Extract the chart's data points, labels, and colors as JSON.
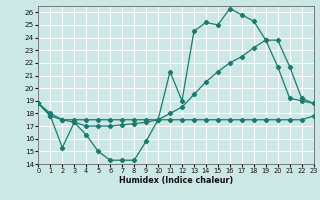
{
  "xlabel": "Humidex (Indice chaleur)",
  "xlim": [
    0,
    23
  ],
  "ylim": [
    14,
    26.5
  ],
  "yticks": [
    14,
    15,
    16,
    17,
    18,
    19,
    20,
    21,
    22,
    23,
    24,
    25,
    26
  ],
  "xticks": [
    0,
    1,
    2,
    3,
    4,
    5,
    6,
    7,
    8,
    9,
    10,
    11,
    12,
    13,
    14,
    15,
    16,
    17,
    18,
    19,
    20,
    21,
    22,
    23
  ],
  "background_color": "#cce8e6",
  "grid_color": "#b0d8d4",
  "line_color": "#1a7a6e",
  "line1_x": [
    0,
    1,
    2,
    3,
    4,
    5,
    6,
    7,
    8,
    9,
    10,
    11,
    12,
    13,
    14,
    15,
    16,
    17,
    18,
    19,
    20,
    21,
    22,
    23
  ],
  "line1_y": [
    18.8,
    17.8,
    17.5,
    17.5,
    17.5,
    17.5,
    17.5,
    17.5,
    17.5,
    17.5,
    17.5,
    17.5,
    17.5,
    17.5,
    17.5,
    17.5,
    17.5,
    17.5,
    17.5,
    17.5,
    17.5,
    17.5,
    17.5,
    17.8
  ],
  "line2_x": [
    0,
    1,
    2,
    3,
    4,
    5,
    6,
    7,
    8,
    9,
    10,
    11,
    12,
    13,
    14,
    15,
    16,
    17,
    18,
    19,
    20,
    21,
    22,
    23
  ],
  "line2_y": [
    18.8,
    17.8,
    15.3,
    17.3,
    16.3,
    15.0,
    14.3,
    14.3,
    14.3,
    15.8,
    17.5,
    21.3,
    19.0,
    24.5,
    25.2,
    25.0,
    26.3,
    25.8,
    25.3,
    23.8,
    21.7,
    19.2,
    19.0,
    18.8
  ],
  "line3_x": [
    0,
    1,
    2,
    3,
    4,
    5,
    6,
    7,
    8,
    9,
    10,
    11,
    12,
    13,
    14,
    15,
    16,
    17,
    18,
    19,
    20,
    21,
    22,
    23
  ],
  "line3_y": [
    18.8,
    18.0,
    17.5,
    17.3,
    17.0,
    17.0,
    17.0,
    17.1,
    17.2,
    17.3,
    17.5,
    18.0,
    18.5,
    19.5,
    20.5,
    21.3,
    22.0,
    22.5,
    23.2,
    23.8,
    23.8,
    21.7,
    19.2,
    18.8
  ]
}
